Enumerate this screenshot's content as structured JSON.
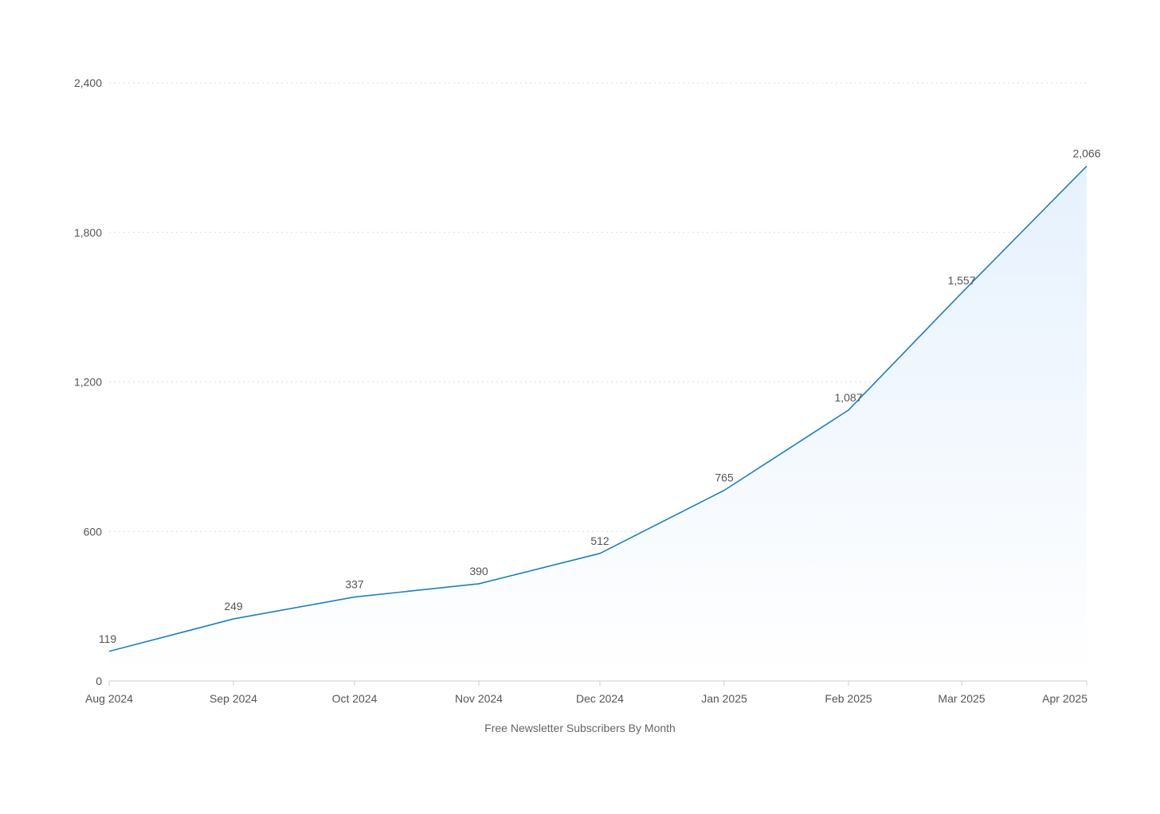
{
  "chart_data": {
    "type": "area",
    "title": "",
    "xlabel": "Free Newsletter Subscribers By Month",
    "ylabel": "",
    "categories": [
      "Aug 2024",
      "Sep 2024",
      "Oct 2024",
      "Nov 2024",
      "Dec 2024",
      "Jan 2025",
      "Feb 2025",
      "Mar 2025",
      "Apr 2025"
    ],
    "series": [
      {
        "values": [
          119,
          249,
          337,
          390,
          512,
          765,
          1087,
          1557,
          2066
        ]
      }
    ],
    "data_labels": [
      "119",
      "249",
      "337",
      "390",
      "512",
      "765",
      "1,087",
      "1,557",
      "2,066"
    ],
    "ylim": [
      0,
      2400
    ],
    "yticks": [
      0,
      600,
      1200,
      1800,
      2400
    ],
    "ytick_labels": [
      "0",
      "600",
      "1,200",
      "1,800",
      "2,400"
    ],
    "grid": true,
    "legend": "none",
    "colors": {
      "line": "#1f7fbf",
      "area_top": "#e6f1fd",
      "area_bottom": "#ffffff",
      "grid": "#dcdcdc",
      "axis": "#cccccc"
    }
  }
}
